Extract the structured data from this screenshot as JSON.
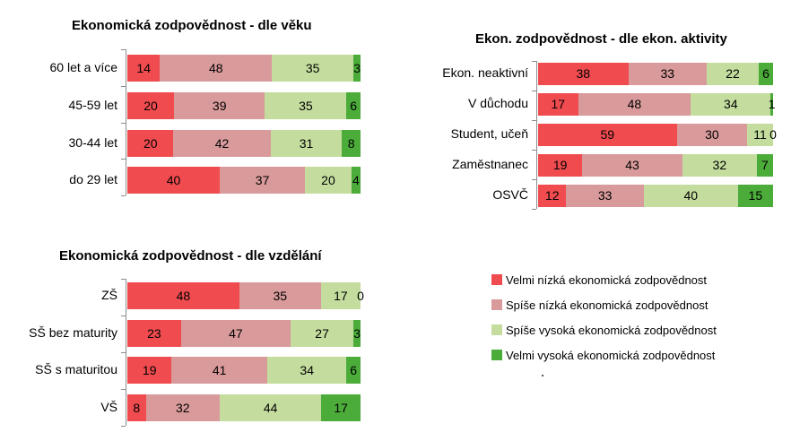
{
  "colors": [
    "#f04b4f",
    "#d99a9b",
    "#c4dd9e",
    "#4bac3a"
  ],
  "legend": [
    "Velmi nízká ekonomická zodpovědnost",
    "Spíše nízká ekonomická zodpovědnost",
    "Spíše vysoká ekonomická zodpovědnost",
    "Velmi vysoká ekonomická zodpovědnost"
  ],
  "chart_data": [
    {
      "type": "bar",
      "orientation": "horizontal",
      "stacked": true,
      "title": "Ekonomická zodpovědnost - dle věku",
      "categories": [
        "60 let a více",
        "45-59 let",
        "30-44 let",
        "do 29 let"
      ],
      "series": [
        {
          "name": "Velmi nízká ekonomická zodpovědnost",
          "values": [
            14,
            20,
            20,
            40
          ]
        },
        {
          "name": "Spíše nízká ekonomická zodpovědnost",
          "values": [
            48,
            39,
            42,
            37
          ]
        },
        {
          "name": "Spíše vysoká ekonomická zodpovědnost",
          "values": [
            35,
            35,
            31,
            20
          ]
        },
        {
          "name": "Velmi vysoká ekonomická zodpovědnost",
          "values": [
            3,
            6,
            8,
            4
          ]
        }
      ]
    },
    {
      "type": "bar",
      "orientation": "horizontal",
      "stacked": true,
      "title": "Ekon. zodpovědnost - dle ekon. aktivity",
      "categories": [
        "Ekon. neaktivní",
        "V důchodu",
        "Student, učeň",
        "Zaměstnanec",
        "OSVČ"
      ],
      "series": [
        {
          "name": "Velmi nízká ekonomická zodpovědnost",
          "values": [
            38,
            17,
            59,
            19,
            12
          ]
        },
        {
          "name": "Spíše nízká ekonomická zodpovědnost",
          "values": [
            33,
            48,
            30,
            43,
            33
          ]
        },
        {
          "name": "Spíše vysoká ekonomická zodpovědnost",
          "values": [
            22,
            34,
            11,
            32,
            40
          ]
        },
        {
          "name": "Velmi vysoká ekonomická zodpovědnost",
          "values": [
            6,
            1,
            0,
            7,
            15
          ]
        }
      ]
    },
    {
      "type": "bar",
      "orientation": "horizontal",
      "stacked": true,
      "title": "Ekonomická zodpovědnost - dle vzdělání",
      "categories": [
        "ZŠ",
        "SŠ bez maturity",
        "SŠ s maturitou",
        "VŠ"
      ],
      "series": [
        {
          "name": "Velmi nízká ekonomická zodpovědnost",
          "values": [
            48,
            23,
            19,
            8
          ]
        },
        {
          "name": "Spíše nízká ekonomická zodpovědnost",
          "values": [
            35,
            47,
            41,
            32
          ]
        },
        {
          "name": "Spíše vysoká ekonomická zodpovědnost",
          "values": [
            17,
            27,
            34,
            44
          ]
        },
        {
          "name": "Velmi vysoká ekonomická zodpovědnost",
          "values": [
            0,
            3,
            6,
            17
          ]
        }
      ]
    }
  ]
}
